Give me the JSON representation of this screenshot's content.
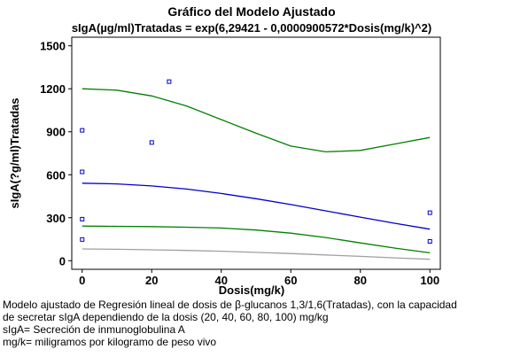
{
  "chart_data": {
    "type": "scatter",
    "title": "Gráfico del Modelo Ajustado",
    "subtitle": "sIgA(µg/ml)Tratadas = exp(6,29421 - 0,0000900572*Dosis(mg/k)^2)",
    "xlabel": "Dosis(mg/k)",
    "ylabel": "sIgA(?g/ml)Tratadas",
    "xlim": [
      -3,
      103
    ],
    "ylim": [
      -60,
      1560
    ],
    "x_ticks": [
      0,
      20,
      40,
      60,
      80,
      100
    ],
    "y_ticks": [
      0,
      300,
      600,
      900,
      1200,
      1500
    ],
    "grid": false,
    "legend": "none",
    "points": {
      "color": "#0000cc",
      "x": [
        0,
        0,
        0,
        0,
        20,
        25,
        100,
        100
      ],
      "y": [
        910,
        620,
        290,
        148,
        825,
        1250,
        335,
        135
      ]
    },
    "fitted": {
      "color": "#0000cc",
      "x": [
        0,
        10,
        20,
        30,
        40,
        50,
        60,
        70,
        80,
        90,
        100
      ],
      "y": [
        541,
        536,
        522,
        500,
        469,
        433,
        392,
        348,
        304,
        261,
        220
      ]
    },
    "upper_limit": {
      "color": "#008000",
      "x": [
        0,
        10,
        20,
        30,
        40,
        50,
        60,
        70,
        80,
        90,
        100
      ],
      "y": [
        1200,
        1190,
        1150,
        1080,
        985,
        890,
        800,
        760,
        770,
        815,
        860
      ]
    },
    "lower_limit": {
      "color": "#008000",
      "x": [
        0,
        10,
        20,
        30,
        40,
        50,
        60,
        70,
        80,
        90,
        100
      ],
      "y": [
        242,
        240,
        238,
        234,
        228,
        214,
        192,
        162,
        124,
        88,
        55
      ]
    },
    "lower_prediction": {
      "color": "#a0a0a0",
      "x": [
        0,
        10,
        20,
        30,
        40,
        50,
        60,
        70,
        80,
        90,
        100
      ],
      "y": [
        82,
        80,
        76,
        72,
        66,
        58,
        50,
        40,
        30,
        20,
        10
      ]
    }
  },
  "caption": {
    "line1": "Modelo ajustado de Regresión lineal de dosis de β-glucanos 1,3/1,6(Tratadas), con la capacidad",
    "line2": "de secretar sIgA dependiendo de la dosis (20, 40, 60, 80, 100) mg/kg",
    "line3": "sIgA= Secreción de inmunoglobulina A",
    "line4": "mg/k= miligramos por kilogramo de peso vivo"
  }
}
